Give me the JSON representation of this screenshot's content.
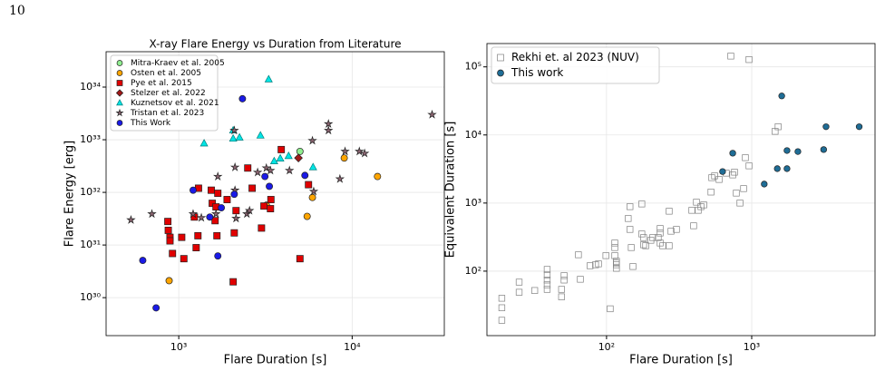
{
  "page_number": "10",
  "chart_data": [
    {
      "type": "scatter",
      "title": "X-ray Flare Energy vs Duration from Literature",
      "xlabel": "Flare Duration [s]",
      "ylabel": "Flare Energy [erg]",
      "xscale": "log",
      "yscale": "log",
      "grid": true,
      "legend": "upper left",
      "xlim": [
        381,
        34000
      ],
      "ylim": [
        1.9e+29,
        4.7e+34
      ],
      "xticks": [
        {
          "value": 1000,
          "label": "10³"
        },
        {
          "value": 10000,
          "label": "10⁴"
        }
      ],
      "yticks": [
        {
          "value": 1e+30,
          "label": "10³⁰"
        },
        {
          "value": 1e+31,
          "label": "10³¹"
        },
        {
          "value": 1e+32,
          "label": "10³²"
        },
        {
          "value": 1e+33,
          "label": "10³³"
        },
        {
          "value": 1e+34,
          "label": "10³⁴"
        }
      ],
      "series": [
        {
          "name": "Mitra-Kraev et al. 2005",
          "color": "#90ee90",
          "marker": "circle",
          "x": [
            5000
          ],
          "values": [
            6e+32
          ]
        },
        {
          "name": "Osten et al. 2005",
          "color": "#ffa500",
          "marker": "circle",
          "x": [
            880,
            14000,
            9000,
            5900,
            5500,
            3200
          ],
          "values": [
            2.1e+30,
            2e+32,
            4.5e+32,
            8e+31,
            3.5e+31,
            5.7e+31
          ]
        },
        {
          "name": "Pye et al. 2015",
          "color": "#e00000",
          "marker": "square",
          "x": [
            865,
            870,
            890,
            890,
            920,
            1040,
            1070,
            1290,
            1260,
            1230,
            1300,
            1540,
            1560,
            1620,
            1660,
            1640,
            1680,
            1900,
            2090,
            2060,
            2140,
            2500,
            2650,
            3000,
            3100,
            3380,
            3400,
            3900,
            5000,
            5600
          ],
          "values": [
            2.8e+31,
            1.9e+31,
            1.4e+31,
            1.2e+31,
            6.9e+30,
            1.4e+31,
            5.5e+30,
            1.5e+31,
            8.9e+30,
            3.4e+31,
            1.2e+32,
            1.1e+32,
            6.2e+31,
            2.9e+31,
            1.5e+31,
            5.3e+31,
            9.6e+31,
            7.3e+31,
            1.7e+31,
            2e+30,
            4.5e+31,
            2.9e+32,
            1.2e+32,
            2.1e+31,
            5.5e+31,
            4.9e+31,
            7.3e+31,
            6.5e+32,
            5.5e+30,
            1.4e+32
          ]
        },
        {
          "name": "Stelzer et al. 2022",
          "color": "#a01818",
          "marker": "diamond",
          "x": [
            4900
          ],
          "values": [
            4.5e+32
          ]
        },
        {
          "name": "Kuznetsov et al. 2021",
          "color": "#00e5e5",
          "marker": "triangle",
          "x": [
            3300,
            1400,
            2060,
            2060,
            2960,
            3550,
            3850,
            4300,
            5950,
            2240
          ],
          "values": [
            1.4e+34,
            8.5e+32,
            1.5e+33,
            1.05e+33,
            1.2e+33,
            3.9e+32,
            4.4e+32,
            4.9e+32,
            3e+32,
            1.1e+33
          ]
        },
        {
          "name": "Tristan et al. 2023",
          "color": "#8a6470",
          "marker": "star",
          "x": [
            530,
            700,
            1210,
            1350,
            1640,
            1680,
            2090,
            2110,
            2110,
            2140,
            2470,
            2560,
            2850,
            3200,
            3380,
            4350,
            5900,
            6000,
            7300,
            7300,
            8500,
            9100,
            11000,
            11800,
            28900
          ],
          "values": [
            3e+31,
            3.9e+31,
            3.9e+31,
            3.3e+31,
            3.9e+31,
            2e+32,
            1.5e+33,
            3e+32,
            1.1e+32,
            3.2e+31,
            3.9e+31,
            4.5e+31,
            2.4e+32,
            2.9e+32,
            2.6e+32,
            2.6e+32,
            9.6e+32,
            1.04e+32,
            1.5e+33,
            2e+33,
            1.8e+32,
            6e+32,
            6e+32,
            5.5e+32,
            3e+33
          ]
        },
        {
          "name": "This Work",
          "color": "#1a1ae6",
          "marker": "circle",
          "x": [
            2330,
            620,
            740,
            1210,
            1510,
            1680,
            1760,
            2090,
            3140,
            3330,
            5340
          ],
          "values": [
            6e+33,
            5.1e+30,
            6.4e+29,
            1.1e+32,
            3.4e+31,
            6.2e+30,
            5.1e+31,
            9.2e+31,
            2e+32,
            1.3e+32,
            2.1e+32
          ]
        }
      ]
    },
    {
      "type": "scatter",
      "xlabel": "Flare Duration [s]",
      "ylabel": "Equivalent Duration [s]",
      "xscale": "log",
      "yscale": "log",
      "grid": true,
      "legend": "upper left",
      "xlim": [
        15,
        7070
      ],
      "ylim": [
        11.3,
        220000
      ],
      "xticks": [
        {
          "value": 100,
          "label": "10²"
        },
        {
          "value": 1000,
          "label": "10³"
        }
      ],
      "yticks": [
        {
          "value": 100,
          "label": "10²"
        },
        {
          "value": 1000,
          "label": "10³"
        },
        {
          "value": 10000,
          "label": "10⁴"
        },
        {
          "value": 100000,
          "label": "10⁵"
        }
      ],
      "series": [
        {
          "name": "Rekhi et. al 2023 (NUV)",
          "color": "#808080",
          "marker": "open-square",
          "x": [
            19,
            19,
            19,
            25,
            25,
            32,
            39,
            39,
            39,
            39,
            39,
            49,
            49,
            51,
            51,
            64,
            66,
            77,
            84,
            88,
            99,
            106,
            114,
            114,
            114,
            117,
            117,
            117,
            117,
            141,
            145,
            145,
            148,
            152,
            175,
            175,
            180,
            180,
            186,
            202,
            208,
            227,
            234,
            234,
            234,
            244,
            270,
            270,
            278,
            303,
            387,
            398,
            416,
            428,
            447,
            467,
            524,
            531,
            555,
            596,
            668,
            740,
            761,
            783,
            830,
            879,
            904,
            958,
            718,
            958,
            1450,
            1520
          ],
          "values": [
            40,
            29,
            19,
            69,
            49,
            52,
            106,
            88,
            74,
            63,
            54,
            54,
            42,
            74,
            86,
            174,
            76,
            120,
            124,
            128,
            169,
            28,
            259,
            222,
            169,
            140,
            124,
            110,
            132,
            593,
            885,
            410,
            222,
            117,
            970,
            352,
            311,
            244,
            236,
            284,
            311,
            311,
            363,
            423,
            259,
            236,
            236,
            759,
            386,
            410,
            782,
            464,
            1030,
            782,
            885,
            940,
            1450,
            2360,
            2510,
            2220,
            2750,
            2590,
            2840,
            1400,
            1000,
            1630,
            4640,
            3520,
            144000,
            128000,
            11300,
            13200
          ]
        },
        {
          "name": "This work",
          "color": "#1f6d96",
          "marker": "circle",
          "x": [
            1610,
            3250,
            5500,
            740,
            630,
            1500,
            1750,
            1750,
            2080,
            3130,
            1220
          ],
          "values": [
            37400,
            13200,
            13200,
            5400,
            2900,
            3200,
            3200,
            5900,
            5700,
            6100,
            1900
          ]
        }
      ]
    }
  ]
}
